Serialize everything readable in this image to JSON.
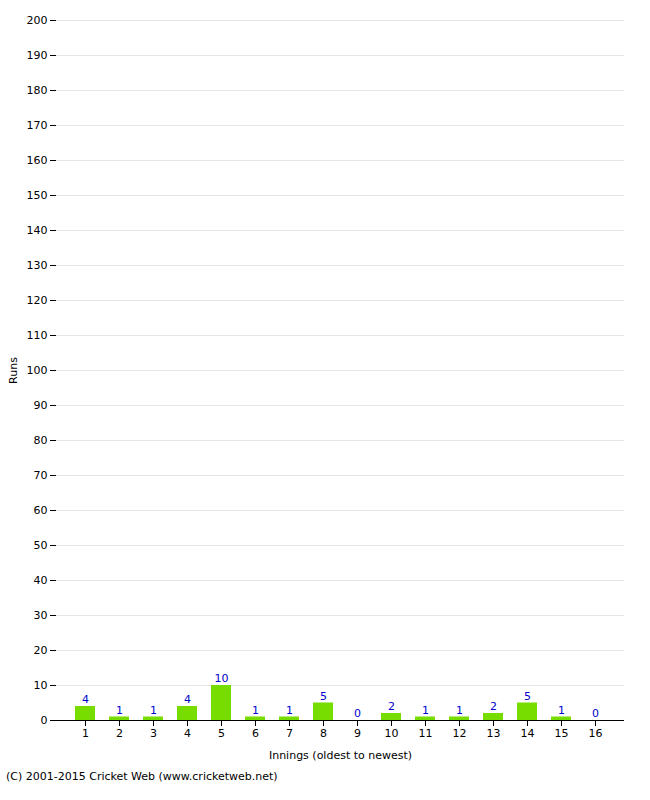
{
  "chart_data": {
    "type": "bar",
    "xlabel": "Innings (oldest to newest)",
    "ylabel": "Runs",
    "categories": [
      1,
      2,
      3,
      4,
      5,
      6,
      7,
      8,
      9,
      10,
      11,
      12,
      13,
      14,
      15,
      16
    ],
    "values": [
      4,
      1,
      1,
      4,
      10,
      1,
      1,
      5,
      0,
      2,
      1,
      1,
      2,
      5,
      1,
      0
    ],
    "color": "#77dd00",
    "ylim": [
      0,
      200
    ],
    "yticks": [
      0,
      10,
      20,
      30,
      40,
      50,
      60,
      70,
      80,
      90,
      100,
      110,
      120,
      130,
      140,
      150,
      160,
      170,
      180,
      190,
      200
    ],
    "grid": true,
    "data_labels": true,
    "footer": "(C) 2001-2015 Cricket Web (www.cricketweb.net)"
  }
}
